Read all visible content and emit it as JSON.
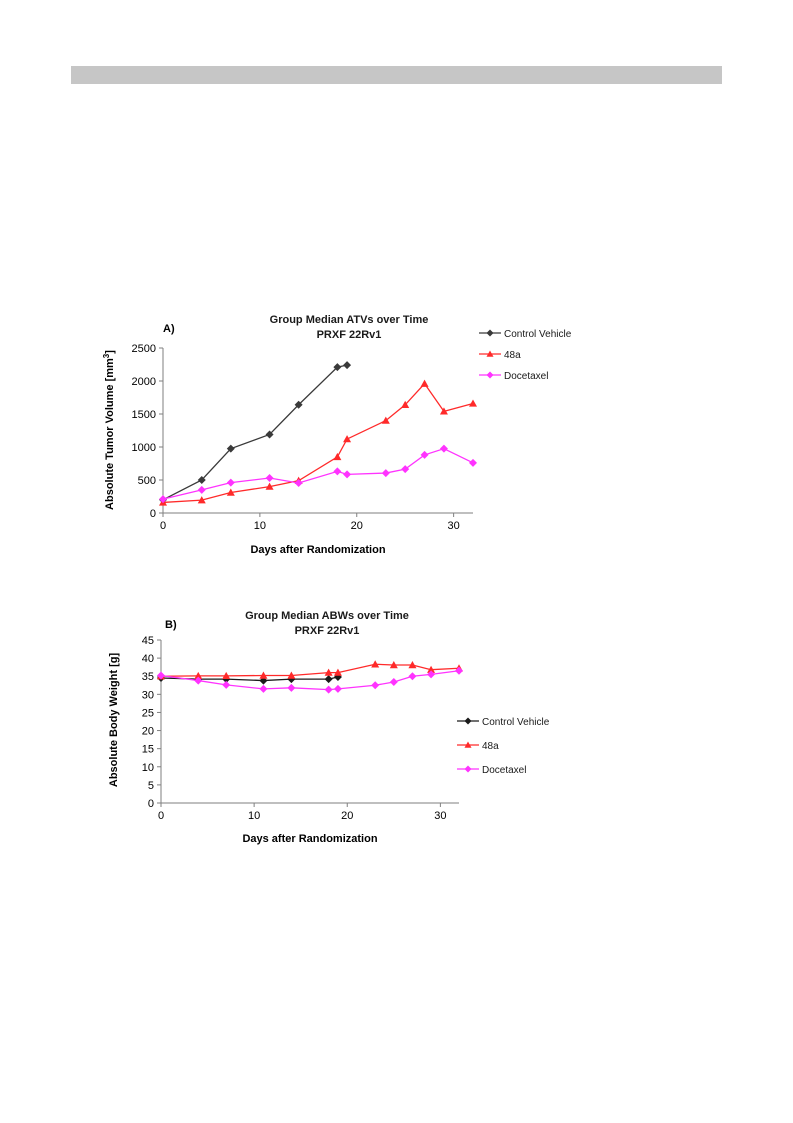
{
  "chart_data": [
    {
      "type": "line",
      "panel_label": "A)",
      "title": "Group Median ATVs over Time",
      "subtitle": "PRXF 22Rv1",
      "xlabel": "Days after Randomization",
      "ylabel_main": "Absolute Tumor Volume [mm",
      "ylabel_sup": "3",
      "ylabel_end": "]",
      "xlim": [
        0,
        32
      ],
      "ylim": [
        0,
        2500
      ],
      "xticks": [
        0,
        10,
        20,
        30
      ],
      "yticks": [
        0,
        500,
        1000,
        1500,
        2000,
        2500
      ],
      "grid": false,
      "legend": "right",
      "series": [
        {
          "name": "Control Vehicle",
          "color": "#3a3a3a",
          "marker": "diamond",
          "x": [
            0,
            4,
            7,
            11,
            14,
            18,
            19
          ],
          "y": [
            200,
            500,
            975,
            1190,
            1640,
            2210,
            2240
          ]
        },
        {
          "name": "48a",
          "color": "#ff2a2a",
          "marker": "triangle",
          "x": [
            0,
            4,
            7,
            11,
            14,
            18,
            19,
            23,
            25,
            27,
            29,
            32
          ],
          "y": [
            160,
            195,
            310,
            400,
            490,
            850,
            1120,
            1400,
            1640,
            1960,
            1540,
            1660
          ]
        },
        {
          "name": "Docetaxel",
          "color": "#ff33ff",
          "marker": "diamond",
          "x": [
            0,
            4,
            7,
            11,
            14,
            18,
            19,
            23,
            25,
            27,
            29,
            32
          ],
          "y": [
            210,
            350,
            460,
            530,
            455,
            630,
            585,
            605,
            665,
            880,
            975,
            760
          ]
        }
      ]
    },
    {
      "type": "line",
      "panel_label": "B)",
      "title": "Group Median ABWs over Time",
      "subtitle": "PRXF 22Rv1",
      "xlabel": "Days after Randomization",
      "ylabel": "Absolute Body Weight [g]",
      "xlim": [
        0,
        32
      ],
      "ylim": [
        0,
        45
      ],
      "xticks": [
        0,
        10,
        20,
        30
      ],
      "yticks": [
        0,
        5,
        10,
        15,
        20,
        25,
        30,
        35,
        40,
        45
      ],
      "grid": false,
      "legend": "right",
      "series": [
        {
          "name": "Control Vehicle",
          "color": "#1a1a1a",
          "marker": "diamond",
          "x": [
            0,
            4,
            7,
            11,
            14,
            18,
            19
          ],
          "y": [
            34.5,
            34.2,
            34.2,
            33.8,
            34.2,
            34.2,
            34.8
          ]
        },
        {
          "name": "48a",
          "color": "#ff2a2a",
          "marker": "triangle",
          "x": [
            0,
            4,
            7,
            11,
            14,
            18,
            19,
            23,
            25,
            27,
            29,
            32
          ],
          "y": [
            35,
            35.1,
            35.1,
            35.2,
            35.2,
            36,
            36,
            38.3,
            38.1,
            38.1,
            36.8,
            37.2
          ]
        },
        {
          "name": "Docetaxel",
          "color": "#ff33ff",
          "marker": "diamond",
          "x": [
            0,
            4,
            7,
            11,
            14,
            18,
            19,
            23,
            25,
            27,
            29,
            32
          ],
          "y": [
            35.2,
            33.8,
            32.6,
            31.5,
            31.8,
            31.3,
            31.5,
            32.5,
            33.4,
            35,
            35.5,
            36.5
          ]
        }
      ]
    }
  ]
}
